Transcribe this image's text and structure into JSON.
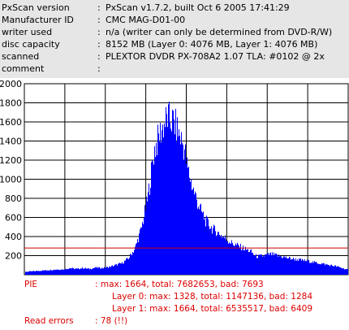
{
  "info": {
    "rows": [
      {
        "key": "PxScan version",
        "value": "PxScan v1.7.2, built Oct  6 2005 17:41:29"
      },
      {
        "key": "Manufacturer ID",
        "value": "CMC MAG-D01-00"
      },
      {
        "key": "writer used",
        "value": "n/a (writer can only be determined from DVD-R/W)"
      },
      {
        "key": "disc capacity",
        "value": "8152 MB (Layer 0: 4076 MB,  Layer 1: 4076 MB)"
      },
      {
        "key": "scanned",
        "value": "PLEXTOR DVDR PX-708A2 1.07 TLA: #0102 @ 2x"
      },
      {
        "key": "comment",
        "value": ""
      }
    ],
    "colon": ":"
  },
  "chart_data": {
    "type": "area",
    "title": "",
    "xlabel": "",
    "ylabel": "",
    "ylim": [
      0,
      2000
    ],
    "yticks": [
      200,
      400,
      600,
      800,
      1000,
      1200,
      1400,
      1600,
      1800,
      2000
    ],
    "threshold": 280,
    "grid": true,
    "series": [
      {
        "x": [
          0,
          2,
          4,
          6,
          8,
          10,
          12,
          14,
          16,
          18,
          20,
          22,
          24,
          26,
          28,
          30,
          32,
          34,
          36,
          38,
          40,
          42,
          44,
          46,
          48,
          49.5,
          50,
          52,
          54,
          56,
          58,
          60,
          62,
          64,
          66,
          68,
          70,
          71,
          72,
          74,
          76,
          78,
          80,
          82,
          84,
          86,
          88,
          90,
          92,
          94,
          96,
          98,
          100
        ],
        "values": [
          30,
          35,
          40,
          45,
          50,
          55,
          55,
          70,
          60,
          70,
          60,
          75,
          70,
          80,
          100,
          120,
          170,
          270,
          480,
          800,
          1300,
          1500,
          1640,
          1600,
          1450,
          1300,
          1150,
          900,
          700,
          560,
          480,
          430,
          380,
          330,
          300,
          270,
          240,
          200,
          190,
          200,
          215,
          200,
          185,
          170,
          160,
          150,
          140,
          125,
          115,
          100,
          90,
          70,
          50
        ]
      }
    ],
    "bar_color": "#0000ff",
    "threshold_color": "#cc0000"
  },
  "results": {
    "pie_label": "PIE",
    "pie_total": ": max: 1664, total: 7682653, bad: 7693",
    "layer0": "Layer 0: max: 1328, total: 1147136, bad: 1284",
    "layer1": "Layer 1: max: 1664, total: 6535517, bad: 6409",
    "read_label": "Read errors",
    "read_value": ": 78 (!!)"
  }
}
